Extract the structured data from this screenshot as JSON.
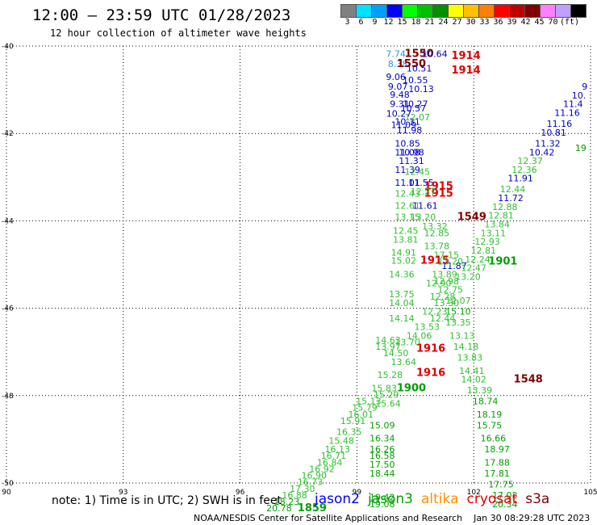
{
  "header": {
    "title": "12:00 – 23:59 UTC 01/28/2023",
    "subtitle": "12 hour collection of altimeter wave heights"
  },
  "colorbar": {
    "unit": "(ft)",
    "labels": [
      "3",
      "6",
      "9",
      "12",
      "15",
      "18",
      "21",
      "24",
      "27",
      "30",
      "33",
      "36",
      "39",
      "42",
      "45",
      "70"
    ],
    "colors": [
      "#808080",
      "#00e0ff",
      "#00a0ff",
      "#0000ff",
      "#00ff00",
      "#00c000",
      "#009000",
      "#ffff00",
      "#ffc000",
      "#ff8000",
      "#ff0000",
      "#c00000",
      "#800000",
      "#ff80ff",
      "#c0a0ff",
      "#000000"
    ]
  },
  "footer": {
    "note": "note: 1) Time is in UTC; 2) SWH is in feet",
    "credit": "NOAA/NESDIS Center for Satellite Applications and Research    Jan 30 08:29:28 UTC 2023",
    "satellites": [
      {
        "name": "jason2",
        "color": "#0000ff"
      },
      {
        "name": "jason3",
        "color": "#00a000"
      },
      {
        "name": "altika",
        "color": "#ff9000"
      },
      {
        "name": "cryosat",
        "color": "#e00000"
      },
      {
        "name": "s3a",
        "color": "#800000"
      }
    ]
  },
  "chart_data": {
    "type": "scatter",
    "title": "12:00 – 23:59 UTC 01/28/2023",
    "xlabel": "",
    "ylabel": "",
    "xlim": [
      90,
      105
    ],
    "ylim": [
      -50,
      -40
    ],
    "x_ticks": [
      90,
      93,
      96,
      99,
      102,
      105
    ],
    "y_ticks": [
      -40,
      -42,
      -44,
      -46,
      -48,
      -50
    ],
    "x_tick_labels": [
      "90",
      "93",
      "96",
      "99",
      "102",
      "105"
    ],
    "y_tick_labels": [
      "-40",
      "-42",
      "-44",
      "-46",
      "-48",
      "-50"
    ],
    "grid": true,
    "points": [
      {
        "lon": 100.0,
        "lat": -40.25,
        "v": "7.74",
        "c": "#3090e0"
      },
      {
        "lon": 100.6,
        "lat": -40.25,
        "v": "1550",
        "c": "#800000"
      },
      {
        "lon": 101.0,
        "lat": -40.25,
        "v": "10.64",
        "c": "#0000c0"
      },
      {
        "lon": 101.8,
        "lat": -40.3,
        "v": "1914",
        "c": "#e00000"
      },
      {
        "lon": 100.05,
        "lat": -40.48,
        "v": "8.38",
        "c": "#3090e0"
      },
      {
        "lon": 100.4,
        "lat": -40.48,
        "v": "1550",
        "c": "#800000"
      },
      {
        "lon": 101.8,
        "lat": -40.63,
        "v": "1914",
        "c": "#e00000"
      },
      {
        "lon": 100.6,
        "lat": -40.58,
        "v": "10.51",
        "c": "#0000c0"
      },
      {
        "lon": 100.0,
        "lat": -40.78,
        "v": "9.06",
        "c": "#0000c0"
      },
      {
        "lon": 100.05,
        "lat": -41.0,
        "v": "9.07",
        "c": "#0000c0"
      },
      {
        "lon": 100.5,
        "lat": -40.85,
        "v": "10.55",
        "c": "#0000c0"
      },
      {
        "lon": 100.65,
        "lat": -41.05,
        "v": "10.13",
        "c": "#0000c0"
      },
      {
        "lon": 100.1,
        "lat": -41.18,
        "v": "9.48",
        "c": "#0000c0"
      },
      {
        "lon": 100.1,
        "lat": -41.4,
        "v": "9.31",
        "c": "#0000c0"
      },
      {
        "lon": 100.5,
        "lat": -41.4,
        "v": "10.27",
        "c": "#0000c0"
      },
      {
        "lon": 100.45,
        "lat": -41.5,
        "v": "10.57",
        "c": "#0000c0"
      },
      {
        "lon": 100.08,
        "lat": -41.62,
        "v": "10.27",
        "c": "#0000c0"
      },
      {
        "lon": 100.3,
        "lat": -41.8,
        "v": "10.31",
        "c": "#0000c0"
      },
      {
        "lon": 100.2,
        "lat": -41.88,
        "v": "11.09",
        "c": "#0000c0"
      },
      {
        "lon": 100.35,
        "lat": -42.0,
        "v": "11.98",
        "c": "#0000c0"
      },
      {
        "lon": 100.55,
        "lat": -41.7,
        "v": "12.07",
        "c": "#30c030"
      },
      {
        "lon": 100.3,
        "lat": -42.3,
        "v": "10.85",
        "c": "#0000c0"
      },
      {
        "lon": 100.3,
        "lat": -42.5,
        "v": "11.08",
        "c": "#0000c0"
      },
      {
        "lon": 100.4,
        "lat": -42.5,
        "v": "10.98",
        "c": "#0000c0"
      },
      {
        "lon": 100.4,
        "lat": -42.7,
        "v": "11.31",
        "c": "#0000c0"
      },
      {
        "lon": 100.3,
        "lat": -42.9,
        "v": "11.39",
        "c": "#0000c0"
      },
      {
        "lon": 100.55,
        "lat": -42.95,
        "v": "12.45",
        "c": "#30c030"
      },
      {
        "lon": 100.3,
        "lat": -43.2,
        "v": "11.01",
        "c": "#0000c0"
      },
      {
        "lon": 100.65,
        "lat": -43.2,
        "v": "11.55",
        "c": "#0000c0"
      },
      {
        "lon": 101.1,
        "lat": -43.28,
        "v": "1915",
        "c": "#e00000"
      },
      {
        "lon": 101.1,
        "lat": -43.45,
        "v": "1915",
        "c": "#e00000"
      },
      {
        "lon": 100.3,
        "lat": -43.45,
        "v": "12.43",
        "c": "#30c030"
      },
      {
        "lon": 100.7,
        "lat": -43.4,
        "v": "12.27",
        "c": "#30c030"
      },
      {
        "lon": 100.3,
        "lat": -43.72,
        "v": "12.61",
        "c": "#30c030"
      },
      {
        "lon": 100.75,
        "lat": -43.72,
        "v": "11.61",
        "c": "#0000c0"
      },
      {
        "lon": 100.3,
        "lat": -43.98,
        "v": "13.15",
        "c": "#30c030"
      },
      {
        "lon": 100.7,
        "lat": -43.98,
        "v": "13.20",
        "c": "#30c030"
      },
      {
        "lon": 101.95,
        "lat": -43.98,
        "v": "1549",
        "c": "#800000"
      },
      {
        "lon": 101.0,
        "lat": -44.2,
        "v": "13.32",
        "c": "#30c030"
      },
      {
        "lon": 100.25,
        "lat": -44.3,
        "v": "12.45",
        "c": "#30c030"
      },
      {
        "lon": 100.25,
        "lat": -44.5,
        "v": "13.81",
        "c": "#30c030"
      },
      {
        "lon": 101.05,
        "lat": -44.35,
        "v": "12.85",
        "c": "#30c030"
      },
      {
        "lon": 101.05,
        "lat": -44.65,
        "v": "13.78",
        "c": "#30c030"
      },
      {
        "lon": 100.2,
        "lat": -44.8,
        "v": "14.91",
        "c": "#30c030"
      },
      {
        "lon": 100.2,
        "lat": -44.98,
        "v": "15.02",
        "c": "#30c030"
      },
      {
        "lon": 101.3,
        "lat": -44.85,
        "v": "17.15",
        "c": "#30c030"
      },
      {
        "lon": 101.0,
        "lat": -44.98,
        "v": "1915",
        "c": "#e00000"
      },
      {
        "lon": 101.5,
        "lat": -45.1,
        "v": "11.87",
        "c": "#0000c0"
      },
      {
        "lon": 101.4,
        "lat": -45.0,
        "v": "13.20",
        "c": "#30c030"
      },
      {
        "lon": 101.25,
        "lat": -45.3,
        "v": "13.89",
        "c": "#30c030"
      },
      {
        "lon": 101.1,
        "lat": -45.5,
        "v": "12.90",
        "c": "#30c030"
      },
      {
        "lon": 101.3,
        "lat": -45.45,
        "v": "12.98",
        "c": "#30c030"
      },
      {
        "lon": 101.4,
        "lat": -45.65,
        "v": "12.75",
        "c": "#30c030"
      },
      {
        "lon": 101.2,
        "lat": -45.8,
        "v": "12.28",
        "c": "#30c030"
      },
      {
        "lon": 101.3,
        "lat": -45.95,
        "v": "13.30",
        "c": "#30c030"
      },
      {
        "lon": 101.6,
        "lat": -45.9,
        "v": "12.07",
        "c": "#30c030"
      },
      {
        "lon": 100.15,
        "lat": -45.3,
        "v": "14.36",
        "c": "#30c030"
      },
      {
        "lon": 100.15,
        "lat": -45.75,
        "v": "13.75",
        "c": "#30c030"
      },
      {
        "lon": 100.15,
        "lat": -45.95,
        "v": "14.04",
        "c": "#30c030"
      },
      {
        "lon": 100.15,
        "lat": -46.3,
        "v": "14.14",
        "c": "#30c030"
      },
      {
        "lon": 101.0,
        "lat": -46.15,
        "v": "12.23",
        "c": "#30c030"
      },
      {
        "lon": 101.2,
        "lat": -46.3,
        "v": "12.44",
        "c": "#30c030"
      },
      {
        "lon": 101.6,
        "lat": -46.15,
        "v": "15.10",
        "c": "#00a000"
      },
      {
        "lon": 101.6,
        "lat": -46.4,
        "v": "13.35",
        "c": "#30c030"
      },
      {
        "lon": 100.8,
        "lat": -46.5,
        "v": "13.53",
        "c": "#30c030"
      },
      {
        "lon": 100.6,
        "lat": -46.7,
        "v": "14.06",
        "c": "#30c030"
      },
      {
        "lon": 101.7,
        "lat": -46.7,
        "v": "13.13",
        "c": "#30c030"
      },
      {
        "lon": 99.8,
        "lat": -46.8,
        "v": "14.63",
        "c": "#30c030"
      },
      {
        "lon": 99.8,
        "lat": -46.95,
        "v": "13.97",
        "c": "#30c030"
      },
      {
        "lon": 100.3,
        "lat": -46.85,
        "v": "13.70",
        "c": "#30c030"
      },
      {
        "lon": 100.9,
        "lat": -47.0,
        "v": "1916",
        "c": "#e00000"
      },
      {
        "lon": 101.8,
        "lat": -46.95,
        "v": "14.18",
        "c": "#30c030"
      },
      {
        "lon": 100.0,
        "lat": -47.1,
        "v": "14.50",
        "c": "#30c030"
      },
      {
        "lon": 100.2,
        "lat": -47.3,
        "v": "13.64",
        "c": "#30c030"
      },
      {
        "lon": 101.9,
        "lat": -47.2,
        "v": "13.83",
        "c": "#30c030"
      },
      {
        "lon": 99.85,
        "lat": -47.6,
        "v": "15.28",
        "c": "#30c030"
      },
      {
        "lon": 100.9,
        "lat": -47.55,
        "v": "1916",
        "c": "#e00000"
      },
      {
        "lon": 101.95,
        "lat": -47.5,
        "v": "14.41",
        "c": "#30c030"
      },
      {
        "lon": 102.0,
        "lat": -47.7,
        "v": "14.02",
        "c": "#30c030"
      },
      {
        "lon": 103.4,
        "lat": -47.7,
        "v": "1548",
        "c": "#800000"
      },
      {
        "lon": 99.7,
        "lat": -47.9,
        "v": "15.83",
        "c": "#30c030"
      },
      {
        "lon": 100.4,
        "lat": -47.9,
        "v": "1900",
        "c": "#00a000"
      },
      {
        "lon": 102.15,
        "lat": -47.95,
        "v": "13.39",
        "c": "#30c030"
      },
      {
        "lon": 99.75,
        "lat": -48.05,
        "v": "15.29",
        "c": "#30c030"
      },
      {
        "lon": 99.3,
        "lat": -48.2,
        "v": "15.13",
        "c": "#30c030"
      },
      {
        "lon": 99.8,
        "lat": -48.25,
        "v": "15.64",
        "c": "#30c030"
      },
      {
        "lon": 102.3,
        "lat": -48.2,
        "v": "18.74",
        "c": "#00a000"
      },
      {
        "lon": 99.2,
        "lat": -48.35,
        "v": "15.79",
        "c": "#30c030"
      },
      {
        "lon": 102.4,
        "lat": -48.5,
        "v": "18.19",
        "c": "#00a000"
      },
      {
        "lon": 99.1,
        "lat": -48.5,
        "v": "16.01",
        "c": "#30c030"
      },
      {
        "lon": 98.9,
        "lat": -48.65,
        "v": "15.91",
        "c": "#30c030"
      },
      {
        "lon": 99.65,
        "lat": -48.75,
        "v": "15.09",
        "c": "#00a000"
      },
      {
        "lon": 102.4,
        "lat": -48.75,
        "v": "15.75",
        "c": "#00a000"
      },
      {
        "lon": 98.8,
        "lat": -48.9,
        "v": "16.35",
        "c": "#30c030"
      },
      {
        "lon": 98.6,
        "lat": -49.1,
        "v": "15.48",
        "c": "#30c030"
      },
      {
        "lon": 99.65,
        "lat": -49.05,
        "v": "16.34",
        "c": "#00a000"
      },
      {
        "lon": 102.5,
        "lat": -49.05,
        "v": "16.66",
        "c": "#00a000"
      },
      {
        "lon": 98.5,
        "lat": -49.3,
        "v": "16.13",
        "c": "#30c030"
      },
      {
        "lon": 99.65,
        "lat": -49.3,
        "v": "16.26",
        "c": "#00a000"
      },
      {
        "lon": 102.6,
        "lat": -49.3,
        "v": "18.97",
        "c": "#00a000"
      },
      {
        "lon": 98.4,
        "lat": -49.45,
        "v": "16.71",
        "c": "#30c030"
      },
      {
        "lon": 99.65,
        "lat": -49.45,
        "v": "16.58",
        "c": "#00a000"
      },
      {
        "lon": 98.3,
        "lat": -49.6,
        "v": "16.84",
        "c": "#30c030"
      },
      {
        "lon": 99.65,
        "lat": -49.65,
        "v": "17.50",
        "c": "#00a000"
      },
      {
        "lon": 102.6,
        "lat": -49.6,
        "v": "17.88",
        "c": "#00a000"
      },
      {
        "lon": 98.1,
        "lat": -49.75,
        "v": "16.92",
        "c": "#30c030"
      },
      {
        "lon": 97.9,
        "lat": -49.9,
        "v": "16.90",
        "c": "#30c030"
      },
      {
        "lon": 99.65,
        "lat": -49.85,
        "v": "18.44",
        "c": "#00a000"
      },
      {
        "lon": 102.6,
        "lat": -49.85,
        "v": "17.81",
        "c": "#00a000"
      },
      {
        "lon": 97.8,
        "lat": -50.05,
        "v": "16.73",
        "c": "#30c030"
      },
      {
        "lon": 102.7,
        "lat": -50.1,
        "v": "17.75",
        "c": "#00a000"
      },
      {
        "lon": 97.6,
        "lat": -50.2,
        "v": "17.30",
        "c": "#30c030"
      },
      {
        "lon": 97.4,
        "lat": -50.35,
        "v": "16.88",
        "c": "#30c030"
      },
      {
        "lon": 102.8,
        "lat": -50.35,
        "v": "17.02",
        "c": "#00a000"
      },
      {
        "lon": 99.65,
        "lat": -50.4,
        "v": "19.42",
        "c": "#00a000"
      },
      {
        "lon": 97.2,
        "lat": -50.5,
        "v": "18.23",
        "c": "#00a000"
      },
      {
        "lon": 99.65,
        "lat": -50.55,
        "v": "19.08",
        "c": "#00a000"
      },
      {
        "lon": 102.8,
        "lat": -50.55,
        "v": "20.34",
        "c": "#00a000"
      },
      {
        "lon": 97.0,
        "lat": -50.65,
        "v": "20.78",
        "c": "#00a000"
      },
      {
        "lon": 97.85,
        "lat": -50.65,
        "v": "1859",
        "c": "#00a000"
      },
      {
        "lon": 104.85,
        "lat": -41.0,
        "v": "9",
        "c": "#0000c0"
      },
      {
        "lon": 104.7,
        "lat": -41.2,
        "v": "10.",
        "c": "#0000c0"
      },
      {
        "lon": 104.55,
        "lat": -41.4,
        "v": "11.4",
        "c": "#0000c0"
      },
      {
        "lon": 104.4,
        "lat": -41.6,
        "v": "11.16",
        "c": "#0000c0"
      },
      {
        "lon": 104.2,
        "lat": -41.85,
        "v": "11.16",
        "c": "#0000c0"
      },
      {
        "lon": 104.05,
        "lat": -42.05,
        "v": "10.81",
        "c": "#0000c0"
      },
      {
        "lon": 103.9,
        "lat": -42.3,
        "v": "11.32",
        "c": "#0000c0"
      },
      {
        "lon": 103.75,
        "lat": -42.5,
        "v": "10.42",
        "c": "#0000c0"
      },
      {
        "lon": 104.75,
        "lat": -42.4,
        "v": "19",
        "c": "#00a000"
      },
      {
        "lon": 103.45,
        "lat": -42.7,
        "v": "12.37",
        "c": "#30c030"
      },
      {
        "lon": 103.3,
        "lat": -42.9,
        "v": "12.36",
        "c": "#30c030"
      },
      {
        "lon": 103.2,
        "lat": -43.1,
        "v": "11.91",
        "c": "#0000c0"
      },
      {
        "lon": 103.0,
        "lat": -43.35,
        "v": "12.44",
        "c": "#30c030"
      },
      {
        "lon": 102.95,
        "lat": -43.55,
        "v": "11.72",
        "c": "#0000c0"
      },
      {
        "lon": 102.8,
        "lat": -43.75,
        "v": "12.88",
        "c": "#30c030"
      },
      {
        "lon": 102.7,
        "lat": -43.95,
        "v": "12.81",
        "c": "#30c030"
      },
      {
        "lon": 102.6,
        "lat": -44.15,
        "v": "13.84",
        "c": "#30c030"
      },
      {
        "lon": 102.5,
        "lat": -44.35,
        "v": "13.11",
        "c": "#30c030"
      },
      {
        "lon": 102.35,
        "lat": -44.55,
        "v": "12.93",
        "c": "#30c030"
      },
      {
        "lon": 102.25,
        "lat": -44.75,
        "v": "12.81",
        "c": "#30c030"
      },
      {
        "lon": 102.1,
        "lat": -44.95,
        "v": "12.24",
        "c": "#30c030"
      },
      {
        "lon": 102.0,
        "lat": -45.15,
        "v": "12.47",
        "c": "#30c030"
      },
      {
        "lon": 101.85,
        "lat": -45.35,
        "v": "13.20",
        "c": "#30c030"
      },
      {
        "lon": 102.75,
        "lat": -45.0,
        "v": "1901",
        "c": "#00a000"
      }
    ]
  }
}
